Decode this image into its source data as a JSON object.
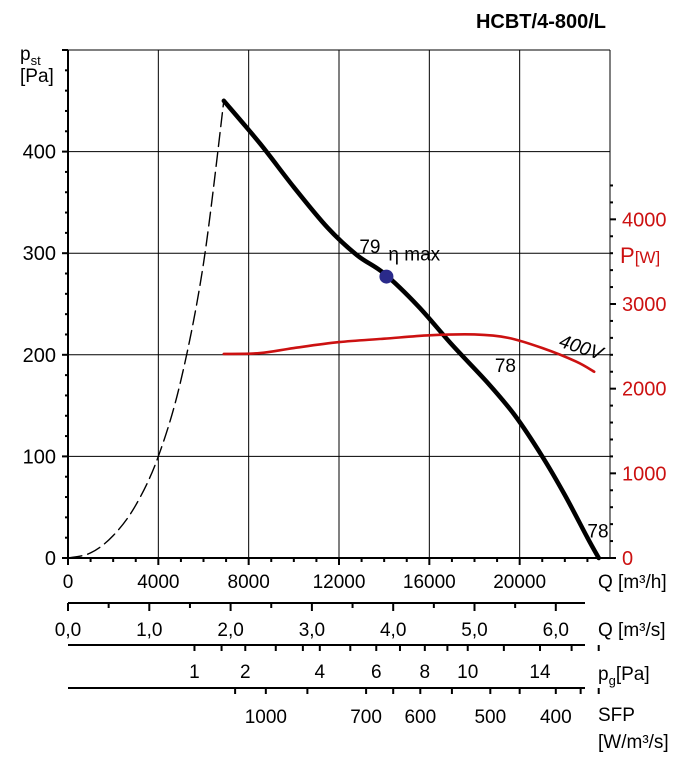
{
  "chart_data": {
    "type": "line",
    "title": "HCBT/4-800/L",
    "y_left": {
      "label_main": "p",
      "label_sub": "st",
      "unit": "[Pa]",
      "range": [
        0,
        500
      ],
      "ticks": [
        0,
        100,
        200,
        300,
        400
      ]
    },
    "y_right": {
      "label_main": "P",
      "unit": "[W]",
      "range": [
        0,
        6000
      ],
      "ticks": [
        0,
        1000,
        2000,
        3000,
        4000
      ],
      "color": "#cc1111"
    },
    "x_axes": [
      {
        "key": "q_m3h",
        "label": "Q [m³/h]",
        "range": [
          0,
          24000
        ],
        "ticks": [
          {
            "value": 0,
            "label": "0"
          },
          {
            "value": 4000,
            "label": "4000"
          },
          {
            "value": 8000,
            "label": "8000"
          },
          {
            "value": 12000,
            "label": "12000"
          },
          {
            "value": 16000,
            "label": "16000"
          },
          {
            "value": 20000,
            "label": "20000"
          }
        ]
      },
      {
        "key": "q_m3s",
        "label": "Q [m³/s]",
        "ticks": [
          {
            "label": "0,0",
            "q": 0
          },
          {
            "label": "1,0",
            "q": 3600
          },
          {
            "label": "2,0",
            "q": 7200
          },
          {
            "label": "3,0",
            "q": 10800
          },
          {
            "label": "4,0",
            "q": 14400
          },
          {
            "label": "5,0",
            "q": 18000
          },
          {
            "label": "6,0",
            "q": 21600
          }
        ]
      },
      {
        "key": "pg",
        "label_main": "p",
        "label_sub": "g",
        "unit": "[Pa]",
        "ticks": [
          {
            "label": "1",
            "q": 5600
          },
          {
            "label": "2",
            "q": 7850
          },
          {
            "label": "4",
            "q": 11150
          },
          {
            "label": "6",
            "q": 13650
          },
          {
            "label": "8",
            "q": 15800
          },
          {
            "label": "10",
            "q": 17700
          },
          {
            "label": "14",
            "q": 20900
          }
        ]
      },
      {
        "key": "sfp",
        "label": "SFP",
        "unit": "[W/m³/s]",
        "ticks": [
          {
            "label": "1000",
            "q": 8760
          },
          {
            "label": "700",
            "q": 13200
          },
          {
            "label": "600",
            "q": 15600
          },
          {
            "label": "500",
            "q": 18700
          },
          {
            "label": "400",
            "q": 21600
          }
        ]
      }
    ],
    "series": [
      {
        "key": "pressure",
        "axis": "left",
        "color": "#000000",
        "points": [
          [
            6900,
            450
          ],
          [
            8500,
            408
          ],
          [
            10000,
            365
          ],
          [
            11500,
            325
          ],
          [
            12800,
            298
          ],
          [
            14000,
            280
          ],
          [
            15500,
            248
          ],
          [
            17000,
            210
          ],
          [
            18600,
            172
          ],
          [
            19800,
            140
          ],
          [
            21000,
            100
          ],
          [
            22000,
            62
          ],
          [
            23000,
            20
          ],
          [
            23500,
            0
          ]
        ]
      },
      {
        "key": "pressure_unstable",
        "axis": "left",
        "color": "#000000",
        "dashed": true,
        "points": [
          [
            0,
            0
          ],
          [
            1000,
            5
          ],
          [
            2000,
            22
          ],
          [
            3000,
            52
          ],
          [
            4000,
            100
          ],
          [
            5000,
            175
          ],
          [
            6000,
            290
          ],
          [
            6900,
            450
          ]
        ]
      },
      {
        "key": "power",
        "name": "400V",
        "axis": "right",
        "color": "#cc1111",
        "points": [
          [
            6900,
            2410
          ],
          [
            8500,
            2420
          ],
          [
            10000,
            2480
          ],
          [
            12000,
            2550
          ],
          [
            14000,
            2590
          ],
          [
            16000,
            2630
          ],
          [
            18000,
            2640
          ],
          [
            19500,
            2600
          ],
          [
            21000,
            2480
          ],
          [
            22500,
            2320
          ],
          [
            23300,
            2200
          ]
        ]
      }
    ],
    "markers": [
      {
        "label": "η max",
        "q": 14100,
        "p": 277,
        "color": "#2a2a8a"
      }
    ],
    "annotations": [
      {
        "text": "79",
        "q": 12900,
        "p": 300
      },
      {
        "text": "78",
        "q": 18900,
        "p": 183
      },
      {
        "text": "78",
        "q": 23000,
        "p": 20
      },
      {
        "text": "400V",
        "q": 21700,
        "power": 2500,
        "color": "#cc1111"
      }
    ]
  }
}
